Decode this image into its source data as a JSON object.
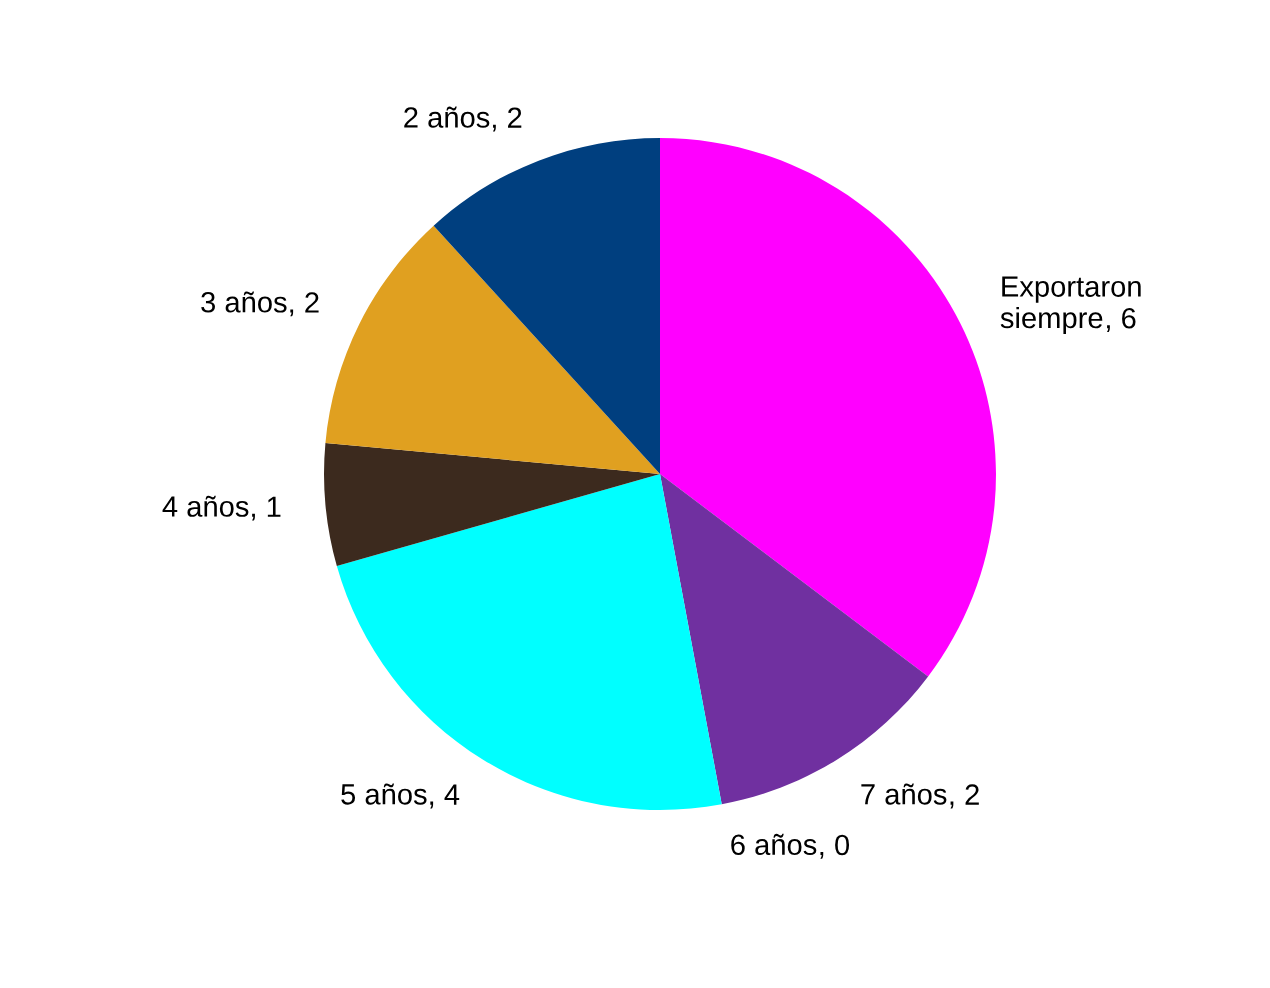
{
  "chart_data": {
    "type": "pie",
    "categories": [
      "Exportaron siempre",
      "7 años",
      "6 años",
      "5 años",
      "4 años",
      "3 años",
      "2 años"
    ],
    "values": [
      6,
      2,
      0,
      4,
      1,
      2,
      2
    ],
    "colors": [
      "#ff00ff",
      "#7030a0",
      "#00ffff",
      "#00ffff",
      "#3c2a1e",
      "#e0a020",
      "#003f7f"
    ],
    "value_labels": [
      ", 6",
      ", 2",
      ", 0",
      ", 4",
      ", 1",
      ", 2",
      ", 2"
    ],
    "legend": false
  }
}
